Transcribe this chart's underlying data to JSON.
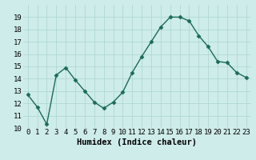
{
  "title": "",
  "xlabel": "Humidex (Indice chaleur)",
  "ylabel": "",
  "x_values": [
    0,
    1,
    2,
    3,
    4,
    5,
    6,
    7,
    8,
    9,
    10,
    11,
    12,
    13,
    14,
    15,
    16,
    17,
    18,
    19,
    20,
    21,
    22,
    23
  ],
  "y_values": [
    12.7,
    11.7,
    10.3,
    14.3,
    14.9,
    13.9,
    13.0,
    12.1,
    11.6,
    12.1,
    12.9,
    14.5,
    15.8,
    17.0,
    18.2,
    19.0,
    19.0,
    18.7,
    17.5,
    16.6,
    15.4,
    15.3,
    14.5,
    14.1
  ],
  "line_color": "#1a6b5a",
  "marker": "D",
  "marker_size": 2.5,
  "background_color": "#ceecea",
  "grid_color": "#afd8d4",
  "tick_label_fontsize": 6.5,
  "xlabel_fontsize": 7.5,
  "ylim": [
    10,
    20
  ],
  "yticks": [
    10,
    11,
    12,
    13,
    14,
    15,
    16,
    17,
    18,
    19
  ],
  "xticks": [
    0,
    1,
    2,
    3,
    4,
    5,
    6,
    7,
    8,
    9,
    10,
    11,
    12,
    13,
    14,
    15,
    16,
    17,
    18,
    19,
    20,
    21,
    22,
    23
  ]
}
